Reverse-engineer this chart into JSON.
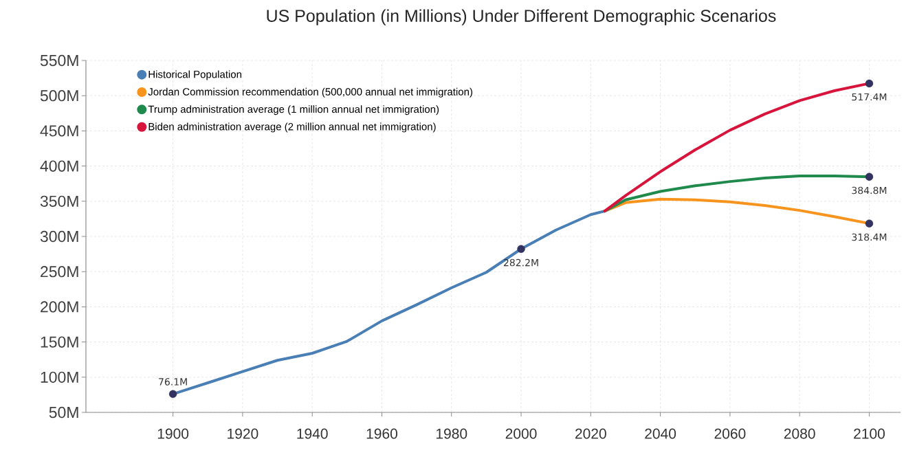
{
  "chart_data": {
    "type": "line",
    "title": "US Population (in Millions) Under Different Demographic Scenarios",
    "xlim": [
      1875,
      2109
    ],
    "ylim": [
      50,
      550
    ],
    "xticks": [
      1900,
      1920,
      1940,
      1960,
      1980,
      2000,
      2020,
      2040,
      2060,
      2080,
      2100
    ],
    "yticks": [
      {
        "value": 50,
        "label": "50M"
      },
      {
        "value": 100,
        "label": "100M"
      },
      {
        "value": 150,
        "label": "150M"
      },
      {
        "value": 200,
        "label": "200M"
      },
      {
        "value": 250,
        "label": "250M"
      },
      {
        "value": 300,
        "label": "300M"
      },
      {
        "value": 350,
        "label": "350M"
      },
      {
        "value": 400,
        "label": "400M"
      },
      {
        "value": 450,
        "label": "450M"
      },
      {
        "value": 500,
        "label": "500M"
      },
      {
        "value": 550,
        "label": "550M"
      }
    ],
    "grid": true,
    "legend": "top left",
    "series": [
      {
        "name": "Historical Population",
        "color": "#4a7fb5",
        "x": [
          1900,
          1910,
          1920,
          1930,
          1940,
          1950,
          1960,
          1970,
          1980,
          1990,
          2000,
          2010,
          2020,
          2024
        ],
        "values": [
          76.1,
          92,
          108,
          124,
          134,
          151,
          180,
          203,
          227,
          249,
          282.2,
          309,
          331,
          336
        ],
        "value_labels": [
          "76.1M",
          null,
          null,
          null,
          null,
          null,
          null,
          null,
          null,
          null,
          "282.2M",
          null,
          null,
          null
        ]
      },
      {
        "name": "Jordan Commission recommendation (500,000 annual net immigration)",
        "color": "#f7941d",
        "x": [
          2024,
          2030,
          2040,
          2050,
          2060,
          2070,
          2080,
          2090,
          2100
        ],
        "values": [
          336,
          348,
          353,
          352,
          349,
          344,
          337,
          328,
          318.4
        ],
        "value_labels": [
          null,
          null,
          null,
          null,
          null,
          null,
          null,
          null,
          "318.4M"
        ]
      },
      {
        "name": "Trump administration average (1 million annual net immigration)",
        "color": "#1f8a4c",
        "x": [
          2024,
          2030,
          2040,
          2050,
          2060,
          2070,
          2080,
          2090,
          2100
        ],
        "values": [
          336,
          352,
          364,
          372,
          378,
          383,
          386,
          386,
          384.8
        ],
        "value_labels": [
          null,
          null,
          null,
          null,
          null,
          null,
          null,
          null,
          "384.8M"
        ]
      },
      {
        "name": "Biden administration average (2 million annual net immigration)",
        "color": "#d7143c",
        "x": [
          2024,
          2030,
          2040,
          2050,
          2060,
          2070,
          2080,
          2090,
          2100
        ],
        "values": [
          336,
          358,
          392,
          423,
          451,
          474,
          493,
          507,
          517.4
        ],
        "value_labels": [
          null,
          null,
          null,
          null,
          null,
          null,
          null,
          null,
          "517.4M"
        ]
      }
    ]
  }
}
